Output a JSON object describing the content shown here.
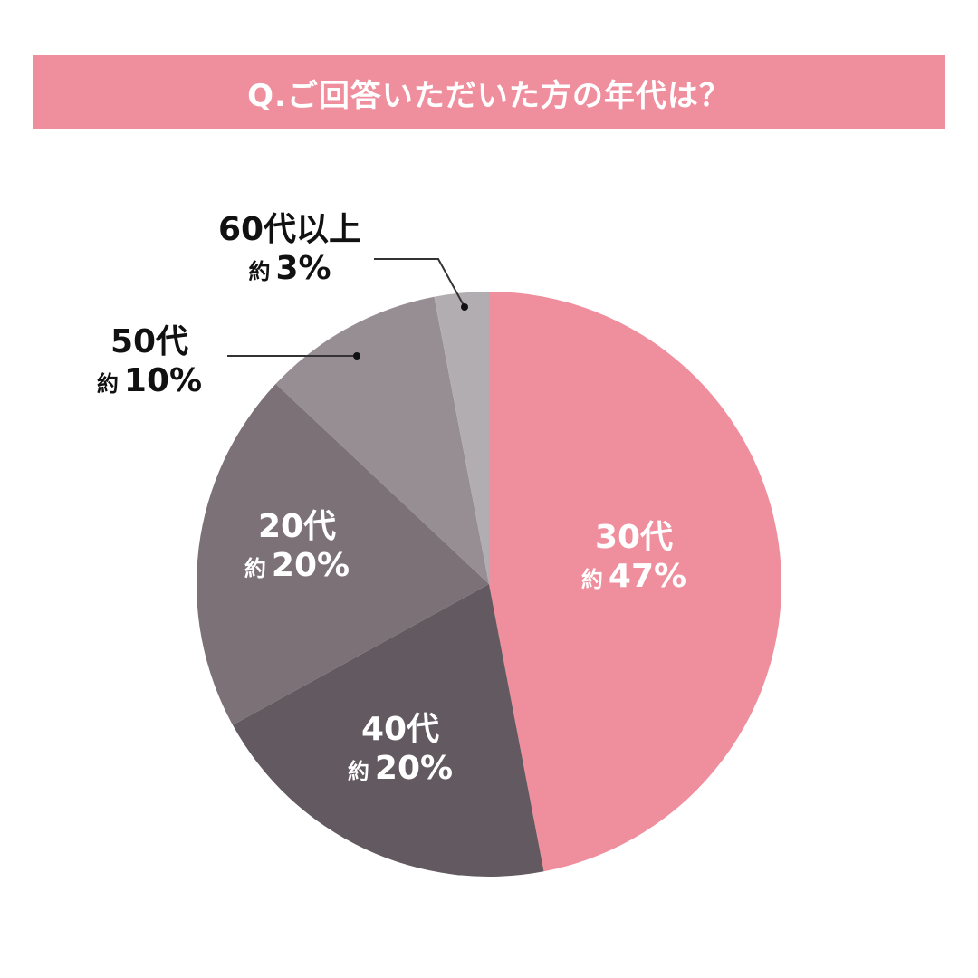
{
  "title": "Q.ご回答いただいた方の年代は？",
  "approx_prefix": "約",
  "colors": {
    "title_bg": "#ef8e9c",
    "30s": "#ef8e9c",
    "40s": "#635960",
    "20s": "#7b7177",
    "50s": "#978e94",
    "60plus": "#b2adb0"
  },
  "labels": {
    "s30": {
      "cat": "30代",
      "pct": "47%"
    },
    "s40": {
      "cat": "40代",
      "pct": "20%"
    },
    "s20": {
      "cat": "20代",
      "pct": "20%"
    },
    "s50": {
      "cat": "50代",
      "pct": "10%"
    },
    "s60": {
      "cat": "60代以上",
      "pct": "3%"
    }
  },
  "chart_data": {
    "type": "pie",
    "title": "Q.ご回答いただいた方の年代は？",
    "categories": [
      "30代",
      "40代",
      "20代",
      "50代",
      "60代以上"
    ],
    "values": [
      47,
      20,
      20,
      10,
      3
    ],
    "unit": "%",
    "value_prefix": "約",
    "start_angle": "12 o'clock",
    "direction": "clockwise",
    "legend": "none (direct labels)"
  }
}
